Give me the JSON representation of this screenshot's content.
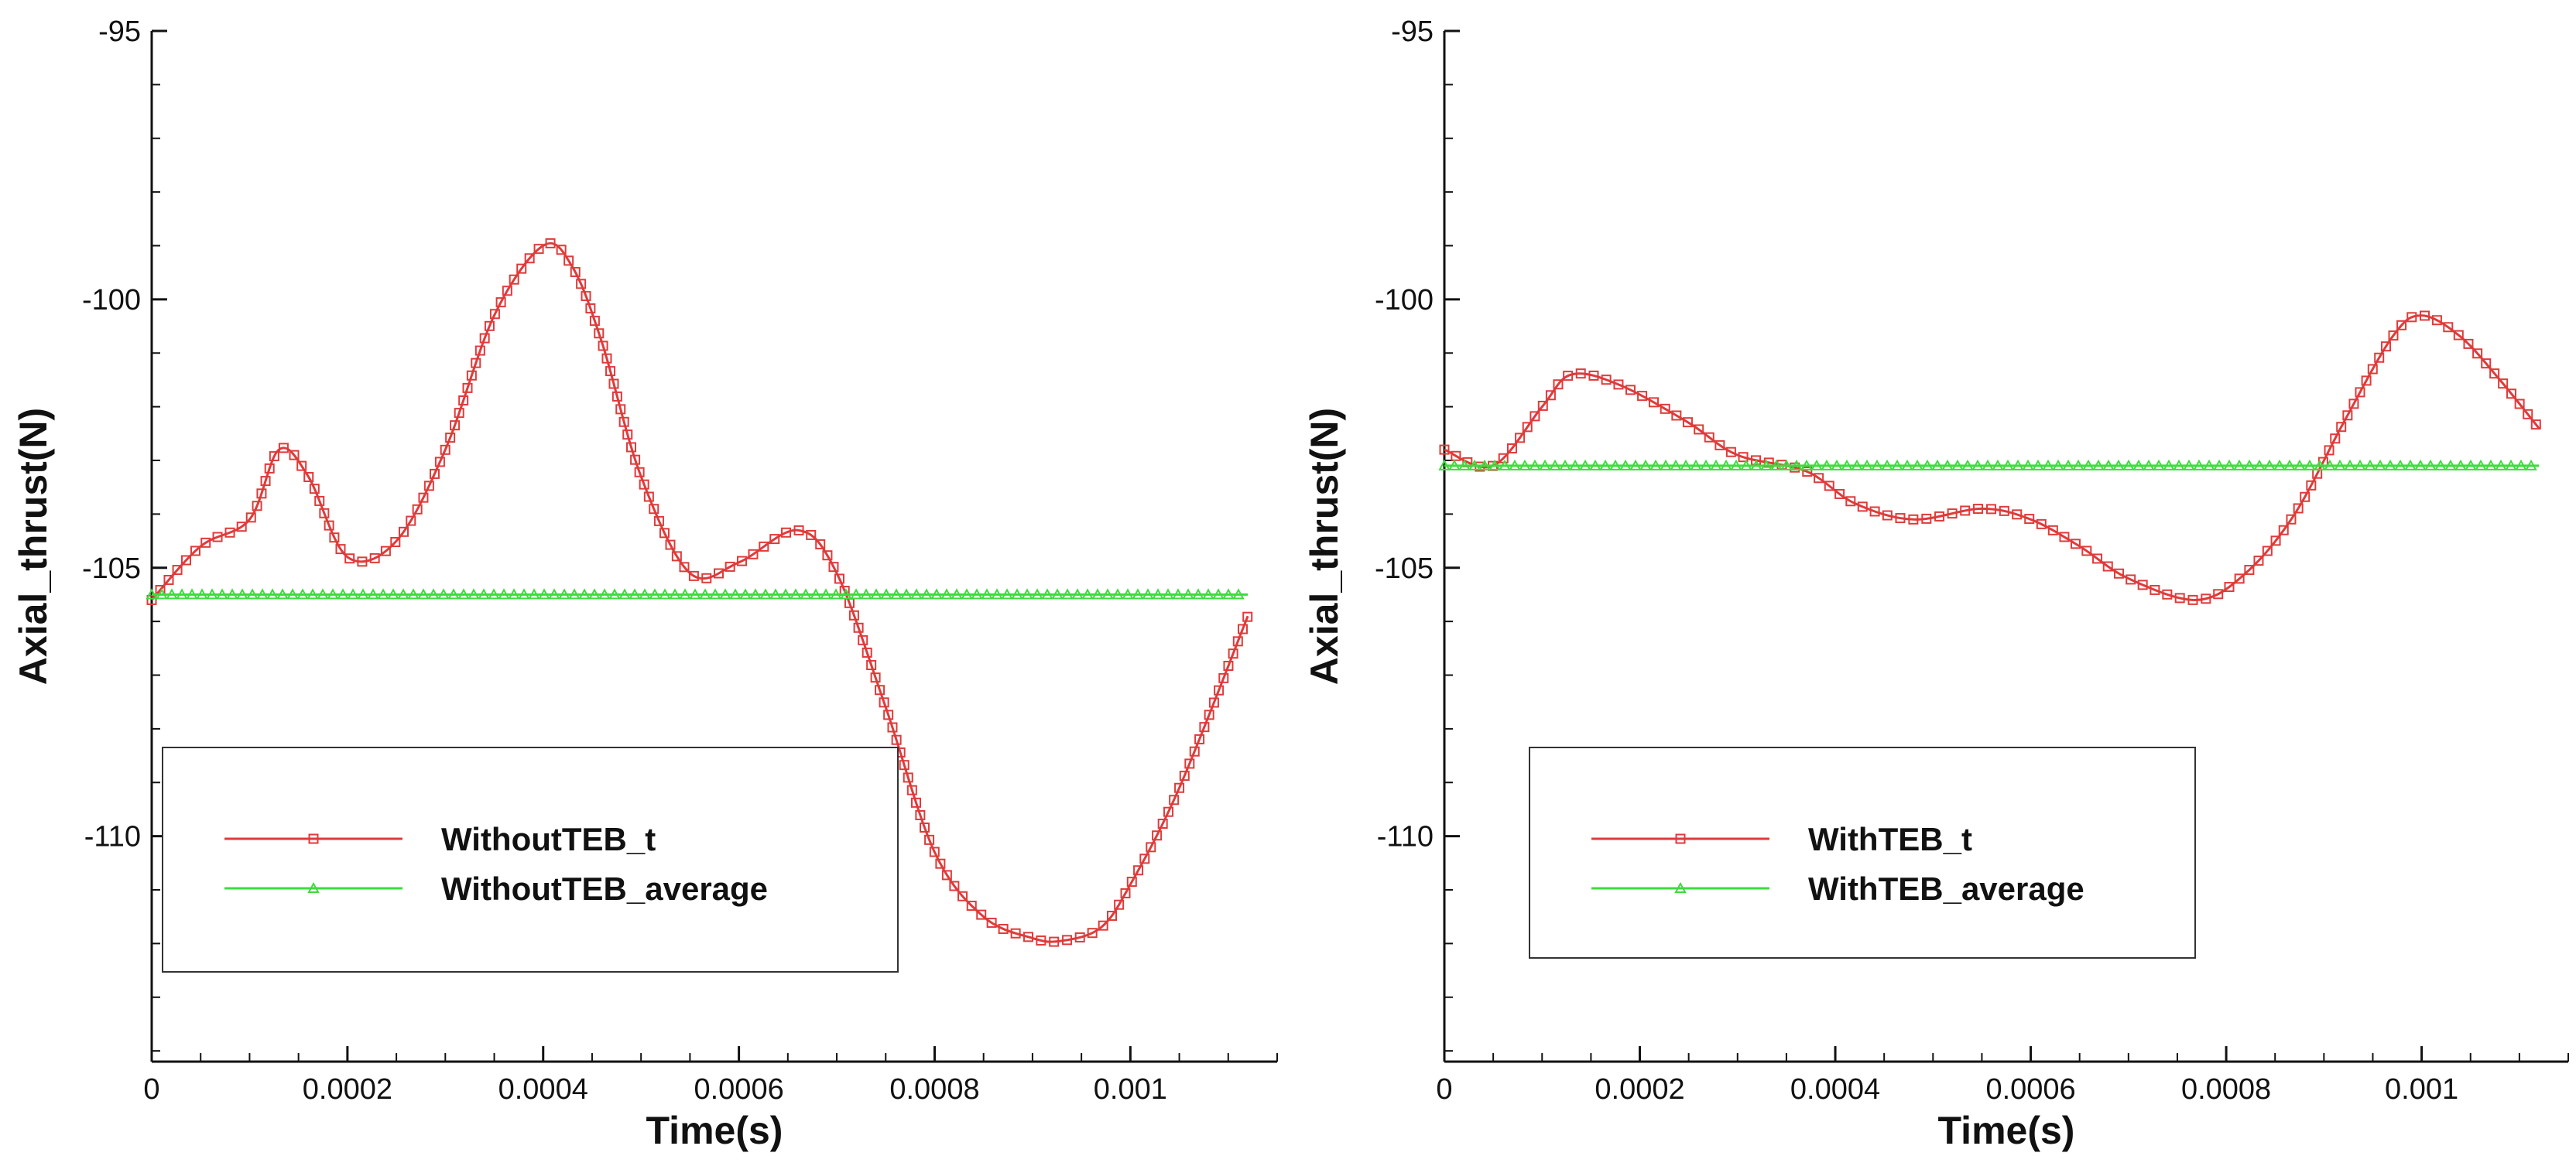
{
  "chart_data": [
    {
      "type": "line",
      "id": "left",
      "title": "",
      "xlabel": "Time(s)",
      "ylabel": "Axial_thrust(N)",
      "xlim": [
        0,
        0.00115
      ],
      "ylim": [
        -114.2,
        -95
      ],
      "xticks": [
        0,
        0.0002,
        0.0004,
        0.0006,
        0.0008,
        0.001
      ],
      "xtick_labels": [
        "0",
        "0.0002",
        "0.0004",
        "0.0006",
        "0.0008",
        "0.001"
      ],
      "yticks": [
        -95,
        -100,
        -105,
        -110
      ],
      "ytick_labels": [
        "-95",
        "-100",
        "-105",
        "-110"
      ],
      "legend_position": "lower-left",
      "series": [
        {
          "name": "WithoutTEB_t",
          "color": "#e03a3a",
          "marker": "square",
          "x": [
            0.0,
            5e-05,
            0.0001,
            0.00013,
            0.00016,
            0.0002,
            0.00025,
            0.0003,
            0.00035,
            0.0004,
            0.00043,
            0.00046,
            0.0005,
            0.00055,
            0.0006,
            0.00066,
            0.0007,
            0.00075,
            0.0008,
            0.00085,
            0.0009,
            0.00093,
            0.00097,
            0.001,
            0.00105,
            0.00112
          ],
          "y": [
            -105.6,
            -104.6,
            -104.1,
            -102.8,
            -103.3,
            -104.8,
            -104.5,
            -102.8,
            -100.3,
            -99.0,
            -99.4,
            -100.8,
            -103.3,
            -105.1,
            -104.9,
            -104.3,
            -105.1,
            -107.6,
            -110.3,
            -111.5,
            -111.9,
            -111.95,
            -111.7,
            -110.9,
            -109.1,
            -105.9
          ]
        },
        {
          "name": "WithoutTEB_average",
          "color": "#3ddc3d",
          "marker": "triangle",
          "x": [
            0.0,
            0.00112
          ],
          "y": [
            -105.5,
            -105.5
          ]
        }
      ]
    },
    {
      "type": "line",
      "id": "right",
      "title": "",
      "xlabel": "Time(s)",
      "ylabel": "Axial_thrust(N)",
      "xlim": [
        0,
        0.00115
      ],
      "ylim": [
        -114.2,
        -95
      ],
      "xticks": [
        0,
        0.0002,
        0.0004,
        0.0006,
        0.0008,
        0.001
      ],
      "xtick_labels": [
        "0",
        "0.0002",
        "0.0004",
        "0.0006",
        "0.0008",
        "0.001"
      ],
      "yticks": [
        -95,
        -100,
        -105,
        -110
      ],
      "ytick_labels": [
        "-95",
        "-100",
        "-105",
        "-110"
      ],
      "legend_position": "lower-left",
      "series": [
        {
          "name": "WithTEB_t",
          "color": "#e03a3a",
          "marker": "square",
          "x": [
            0.0,
            5e-05,
            0.0001,
            0.00013,
            0.00018,
            0.00025,
            0.0003,
            0.00037,
            0.00042,
            0.00048,
            0.00055,
            0.0006,
            0.00065,
            0.0007,
            0.00077,
            0.00082,
            0.00087,
            0.00092,
            0.00097,
            0.001,
            0.00104,
            0.00108,
            0.00112
          ],
          "y": [
            -102.8,
            -103.1,
            -102.0,
            -101.4,
            -101.6,
            -102.3,
            -102.9,
            -103.2,
            -103.8,
            -104.1,
            -103.9,
            -104.1,
            -104.6,
            -105.2,
            -105.6,
            -105.1,
            -104.0,
            -102.3,
            -100.7,
            -100.3,
            -100.7,
            -101.5,
            -102.4
          ]
        },
        {
          "name": "WithTEB_average",
          "color": "#3ddc3d",
          "marker": "triangle",
          "x": [
            0.0,
            0.00112
          ],
          "y": [
            -103.1,
            -103.1
          ]
        }
      ]
    }
  ]
}
